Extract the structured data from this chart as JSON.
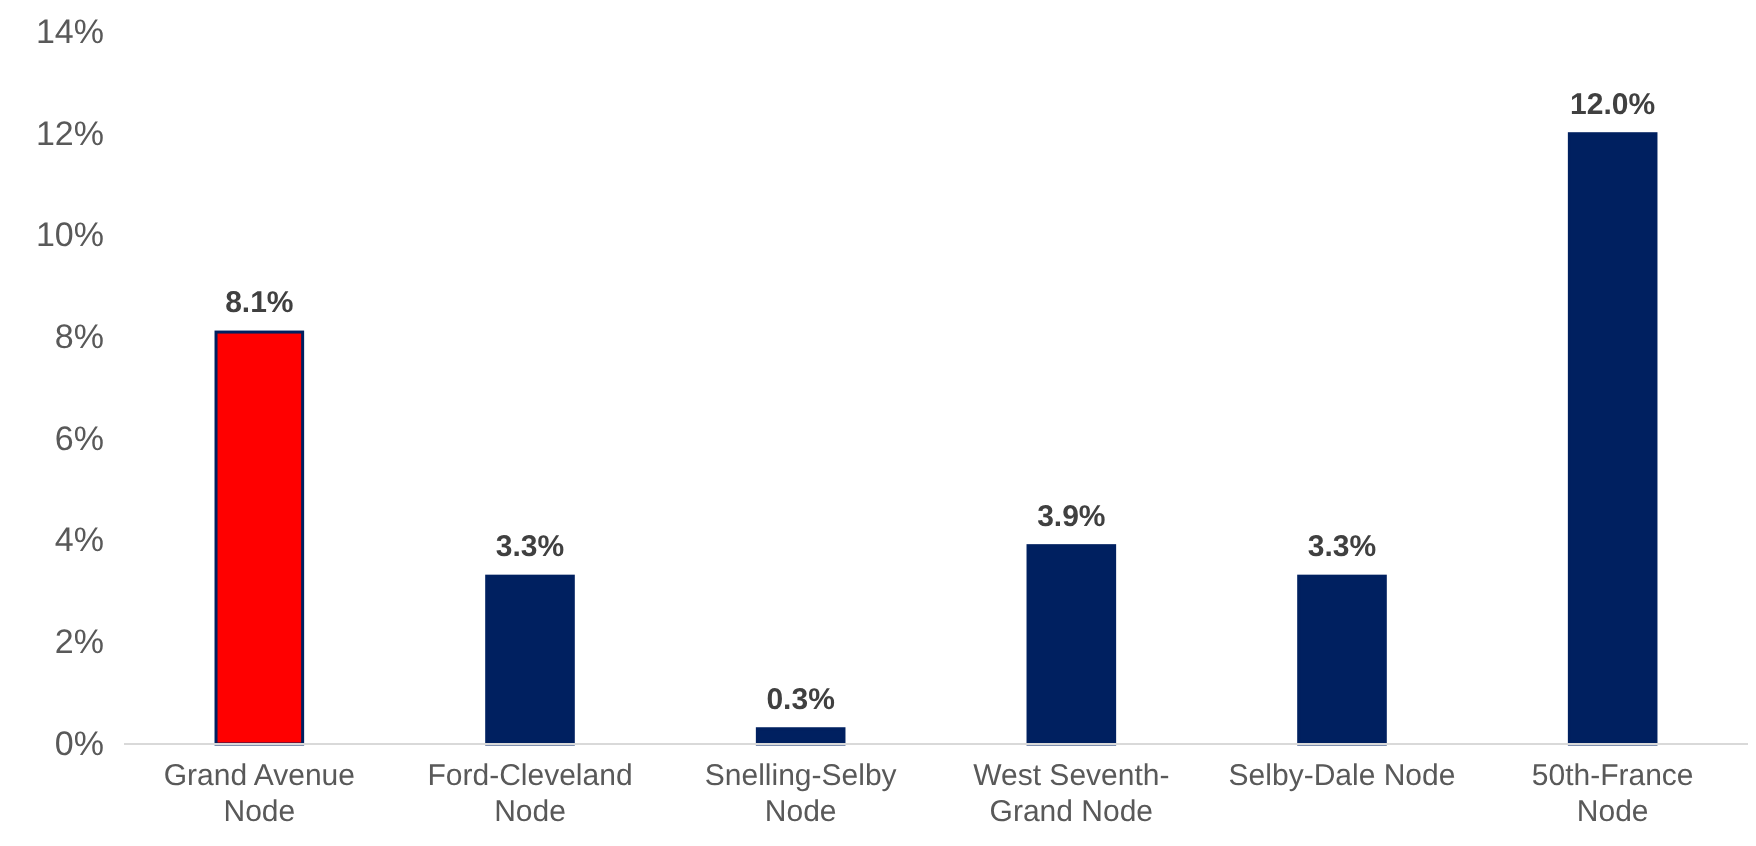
{
  "chart_data": {
    "type": "bar",
    "categories": [
      "Grand Avenue Node",
      "Ford-Cleveland Node",
      "Snelling-Selby Node",
      "West Seventh-Grand Node",
      "Selby-Dale Node",
      "50th-France Node"
    ],
    "values": [
      8.1,
      3.3,
      0.3,
      3.9,
      3.3,
      12.0
    ],
    "colors": [
      "#ff0000",
      "#002060",
      "#002060",
      "#002060",
      "#002060",
      "#002060"
    ],
    "value_labels": [
      "8.1%",
      "3.3%",
      "0.3%",
      "3.9%",
      "3.3%",
      "12.0%"
    ],
    "ylim": [
      0,
      14
    ],
    "yticks": [
      {
        "value": 0,
        "label": "0%"
      },
      {
        "value": 2,
        "label": "2%"
      },
      {
        "value": 4,
        "label": "4%"
      },
      {
        "value": 6,
        "label": "6%"
      },
      {
        "value": 8,
        "label": "8%"
      },
      {
        "value": 10,
        "label": "10%"
      },
      {
        "value": 12,
        "label": "12%"
      },
      {
        "value": 14,
        "label": "14%"
      }
    ],
    "grid": false
  }
}
